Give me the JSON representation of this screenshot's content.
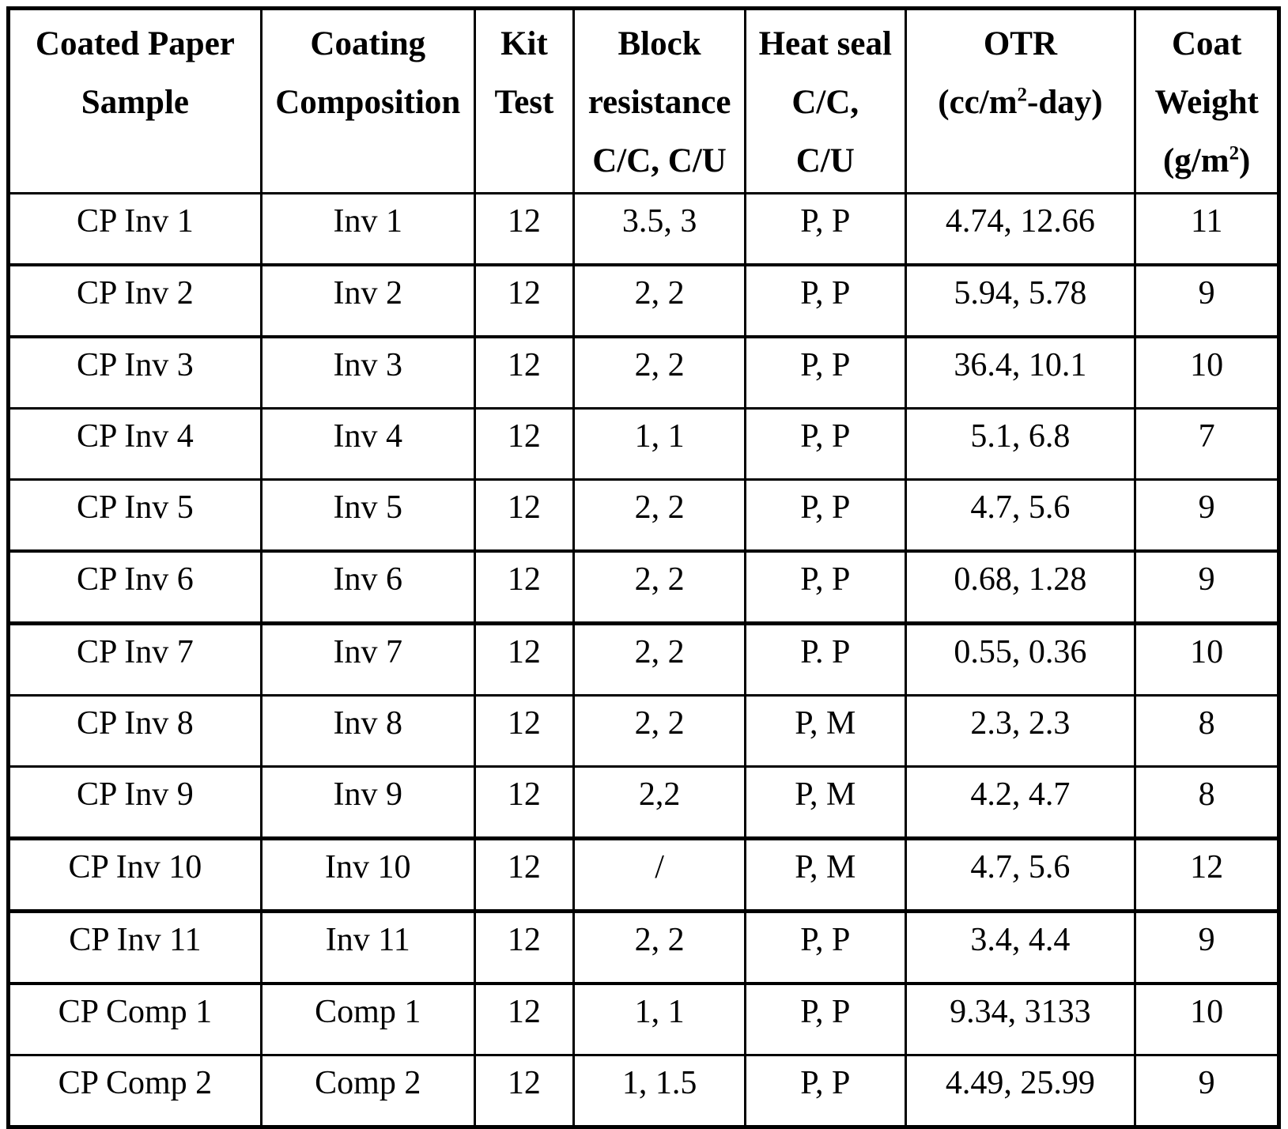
{
  "table": {
    "header": {
      "sample": {
        "line1": "Coated Paper",
        "line2": "Sample"
      },
      "composition": {
        "line1": "Coating",
        "line2": "Composition"
      },
      "kit_test": {
        "line1": "Kit",
        "line2": "Test"
      },
      "block_resistance": {
        "line1": "Block",
        "line2": "resistance",
        "line3": "C/C, C/U"
      },
      "heat_seal": {
        "line1": "Heat seal",
        "line2": "C/C,",
        "line3": "C/U"
      },
      "otr": {
        "line1": "OTR",
        "line2_pre": "(cc/m",
        "line2_sup": "2",
        "line2_post": "-day)"
      },
      "coat_weight": {
        "line1": "Coat",
        "line2": "Weight",
        "line3_pre": "(g/m",
        "line3_sup": "2",
        "line3_post": ")"
      }
    },
    "rows": [
      {
        "cells": [
          "CP Inv 1",
          "Inv 1",
          "12",
          "3.5, 3",
          "P, P",
          "4.74, 12.66",
          "11"
        ]
      },
      {
        "cells": [
          "CP Inv 2",
          "Inv 2",
          "12",
          "2, 2",
          "P, P",
          "5.94, 5.78",
          "9"
        ]
      },
      {
        "cells": [
          "CP Inv 3",
          "Inv 3",
          "12",
          "2, 2",
          "P, P",
          "36.4, 10.1",
          "10"
        ]
      },
      {
        "cells": [
          "CP Inv 4",
          "Inv 4",
          "12",
          "1, 1",
          "P, P",
          "5.1, 6.8",
          "7"
        ]
      },
      {
        "cells": [
          "CP Inv 5",
          "Inv 5",
          "12",
          "2, 2",
          "P, P",
          "4.7, 5.6",
          "9"
        ]
      },
      {
        "cells": [
          "CP Inv 6",
          "Inv 6",
          "12",
          "2, 2",
          "P, P",
          "0.68, 1.28",
          "9"
        ]
      },
      {
        "cells": [
          "CP Inv 7",
          "Inv 7",
          "12",
          "2, 2",
          "P. P",
          "0.55, 0.36",
          "10"
        ]
      },
      {
        "cells": [
          "CP Inv 8",
          "Inv 8",
          "12",
          "2, 2",
          "P, M",
          "2.3, 2.3",
          "8"
        ]
      },
      {
        "cells": [
          "CP Inv 9",
          "Inv 9",
          "12",
          "2,2",
          "P, M",
          "4.2, 4.7",
          "8"
        ]
      },
      {
        "cells": [
          "CP Inv 10",
          "Inv 10",
          "12",
          "/",
          "P, M",
          "4.7, 5.6",
          "12"
        ]
      },
      {
        "cells": [
          "CP Inv 11",
          "Inv 11",
          "12",
          "2, 2",
          "P, P",
          "3.4, 4.4",
          "9"
        ]
      },
      {
        "cells": [
          "CP Comp 1",
          "Comp 1",
          "12",
          "1, 1",
          "P, P",
          "9.34, 3133",
          "10"
        ]
      },
      {
        "cells": [
          "CP Comp 2",
          "Comp 2",
          "12",
          "1, 1.5",
          "P, P",
          "4.49, 25.99",
          "9"
        ]
      }
    ]
  }
}
